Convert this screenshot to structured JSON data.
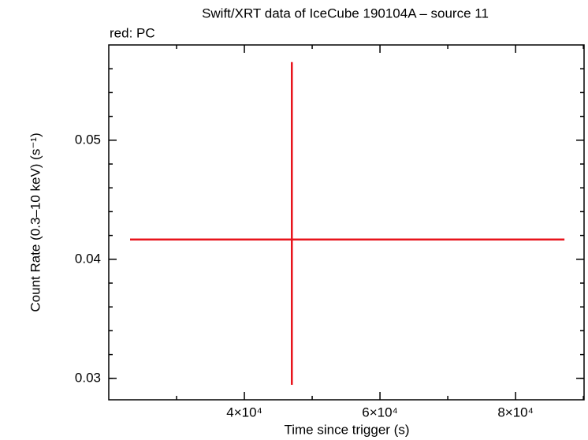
{
  "chart_data": {
    "type": "errorbar",
    "title": "Swift/XRT data of IceCube 190104A – source 11",
    "subtitle": "red: PC",
    "xlabel": "Time since trigger (s)",
    "ylabel": "Count Rate (0.3–10 keV) (s⁻¹)",
    "series": [
      {
        "color": "#e8141c",
        "x": [
          47000
        ],
        "values": [
          0.04166
        ],
        "xerr_minus": [
          23860
        ],
        "xerr_plus": [
          40209
        ],
        "yerr_minus": [
          0.0122
        ],
        "yerr_plus": [
          0.0149
        ]
      }
    ],
    "xlim": [
      20000,
      90100
    ],
    "ylim": [
      0.0282,
      0.058
    ],
    "xticks": [
      {
        "value": 40000,
        "label": "4×10⁴"
      },
      {
        "value": 60000,
        "label": "6×10⁴"
      },
      {
        "value": 80000,
        "label": "8×10⁴"
      }
    ],
    "yticks": [
      0.03,
      0.04,
      0.05
    ],
    "xminorticks": [
      30000,
      50000,
      70000,
      90000
    ],
    "yminorticks": [
      0.03,
      0.032,
      0.034,
      0.036,
      0.038,
      0.042,
      0.044,
      0.046,
      0.048,
      0.052,
      0.054,
      0.056
    ]
  }
}
